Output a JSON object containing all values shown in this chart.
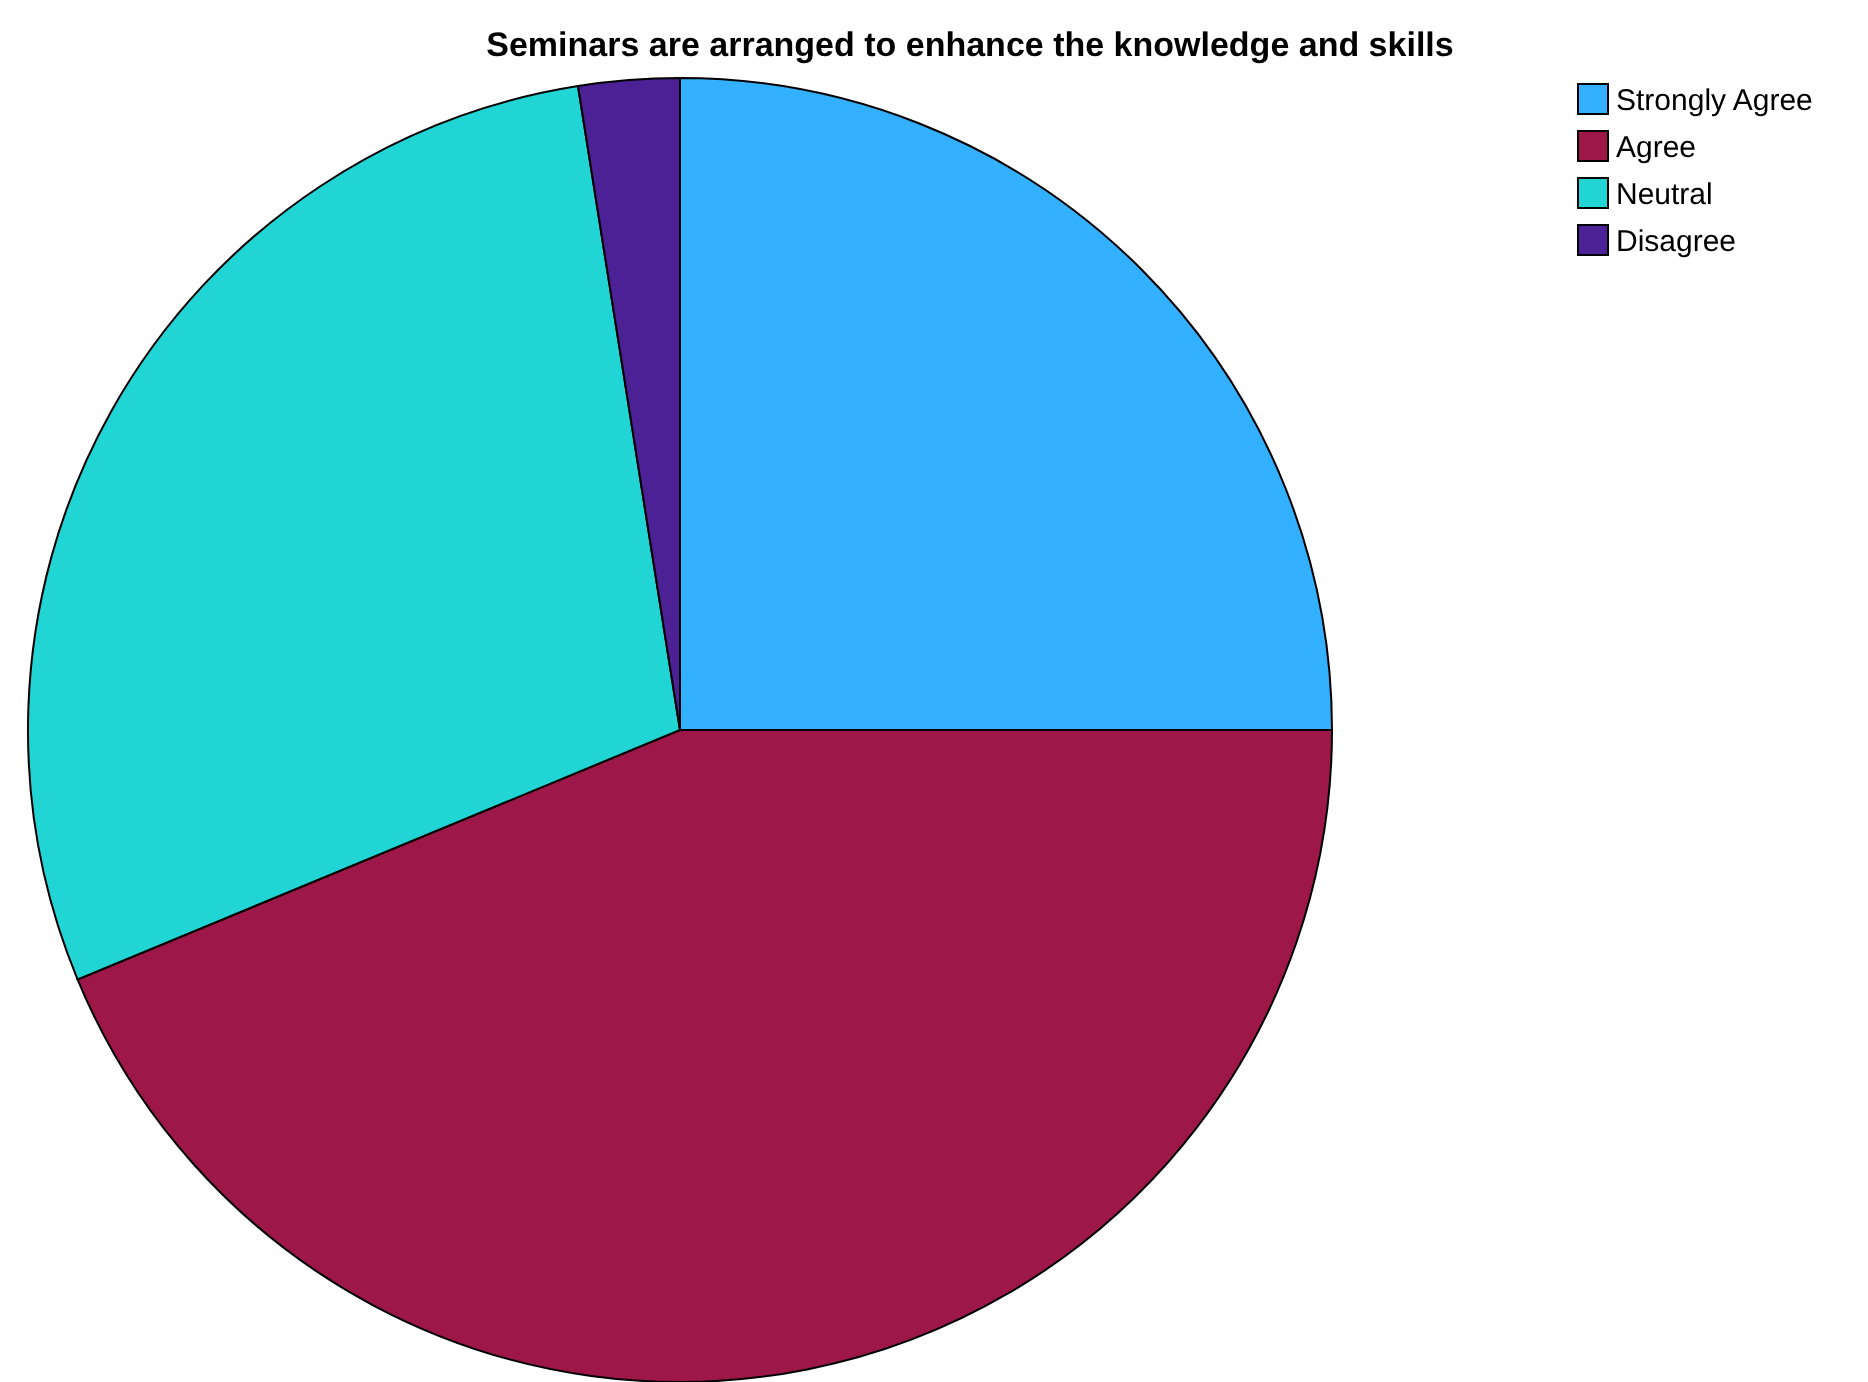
{
  "chart_data": {
    "type": "pie",
    "title": "Seminars are arranged to enhance the knowledge and skills",
    "categories": [
      "Strongly Agree",
      "Agree",
      "Neutral",
      "Disagree"
    ],
    "values": [
      25,
      43.75,
      28.75,
      2.5
    ],
    "colors": [
      "#33b0ff",
      "#9e1749",
      "#22d5d5",
      "#4c2196"
    ],
    "legend": "top right"
  }
}
